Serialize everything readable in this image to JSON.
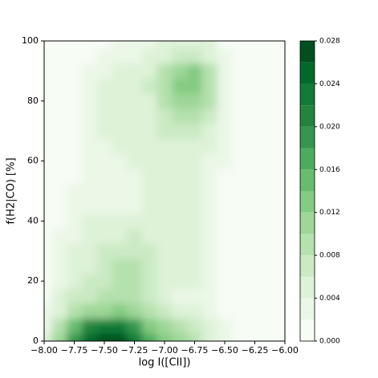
{
  "chart_data": {
    "type": "contour",
    "xlabel": "log I([CII])",
    "ylabel": "f(H2|CO) [%]",
    "xlim": [
      -8,
      -6
    ],
    "ylim": [
      0,
      100
    ],
    "xticks": [
      {
        "value": -8,
        "label": "−8.00"
      },
      {
        "value": -7.75,
        "label": "−7.75"
      },
      {
        "value": -7.5,
        "label": "−7.50"
      },
      {
        "value": -7.25,
        "label": "−7.25"
      },
      {
        "value": -7,
        "label": "−7.00"
      },
      {
        "value": -6.75,
        "label": "−6.75"
      },
      {
        "value": -6.5,
        "label": "−6.50"
      },
      {
        "value": -6.25,
        "label": "−6.25"
      },
      {
        "value": -6,
        "label": "−6.00"
      }
    ],
    "yticks": [
      0,
      20,
      40,
      60,
      80,
      100
    ],
    "levels": [
      0,
      0.002,
      0.004,
      0.006,
      0.008,
      0.01,
      0.012,
      0.014,
      0.016,
      0.018,
      0.02,
      0.022,
      0.024,
      0.026,
      0.028
    ],
    "colors": [
      "#f7fcf5",
      "#ebf7e7",
      "#def2d8",
      "#cbeac4",
      "#b5e1ae",
      "#9ed798",
      "#84cb83",
      "#67bc6e",
      "#4bac5f",
      "#34964f",
      "#23843e",
      "#117b38",
      "#006a2d",
      "#00501f"
    ],
    "colorbar_ticks": [
      {
        "value": 0,
        "label": "0.000"
      },
      {
        "value": 0.004,
        "label": "0.004"
      },
      {
        "value": 0.008,
        "label": "0.008"
      },
      {
        "value": 0.012,
        "label": "0.012"
      },
      {
        "value": 0.016,
        "label": "0.016"
      },
      {
        "value": 0.02,
        "label": "0.020"
      },
      {
        "value": 0.024,
        "label": "0.024"
      },
      {
        "value": 0.028,
        "label": "0.028"
      }
    ],
    "x": [
      -8,
      -7.875,
      -7.75,
      -7.625,
      -7.5,
      -7.375,
      -7.25,
      -7.125,
      -7,
      -6.875,
      -6.75,
      -6.625,
      -6.5,
      -6.375,
      -6.25,
      -6.125,
      -6
    ],
    "y": [
      0,
      5,
      10,
      15,
      20,
      25,
      30,
      35,
      40,
      45,
      50,
      55,
      60,
      65,
      70,
      75,
      80,
      85,
      90,
      95,
      100
    ],
    "z": [
      [
        0.004,
        0.01,
        0.018,
        0.025,
        0.028,
        0.027,
        0.022,
        0.016,
        0.012,
        0.01,
        0.008,
        0.005,
        0.002,
        0.001,
        0.001,
        0.001,
        0.001
      ],
      [
        0.003,
        0.008,
        0.014,
        0.02,
        0.023,
        0.022,
        0.018,
        0.013,
        0.01,
        0.008,
        0.006,
        0.004,
        0.002,
        0.001,
        0.001,
        0.001,
        0.001
      ],
      [
        0.002,
        0.005,
        0.008,
        0.01,
        0.011,
        0.012,
        0.011,
        0.008,
        0.006,
        0.005,
        0.004,
        0.003,
        0.0015,
        0.001,
        0.001,
        0.001,
        0.001
      ],
      [
        0.0015,
        0.004,
        0.006,
        0.007,
        0.008,
        0.009,
        0.009,
        0.007,
        0.005,
        0.003,
        0.0035,
        0.003,
        0.0015,
        0.001,
        0.001,
        0.001,
        0.001
      ],
      [
        0.001,
        0.003,
        0.005,
        0.006,
        0.007,
        0.008,
        0.008,
        0.006,
        0.004,
        0.005,
        0.004,
        0.003,
        0.0015,
        0.001,
        0.001,
        0.001,
        0.001
      ],
      [
        0.001,
        0.0025,
        0.004,
        0.005,
        0.006,
        0.008,
        0.008,
        0.006,
        0.005,
        0.005,
        0.004,
        0.003,
        0.0015,
        0.001,
        0.001,
        0.001,
        0.001
      ],
      [
        0.001,
        0.002,
        0.004,
        0.005,
        0.006,
        0.007,
        0.007,
        0.006,
        0.005,
        0.004,
        0.004,
        0.003,
        0.0015,
        0.001,
        0.001,
        0.001,
        0.001
      ],
      [
        0.001,
        0.002,
        0.003,
        0.0045,
        0.005,
        0.005,
        0.006,
        0.005,
        0.004,
        0.004,
        0.004,
        0.003,
        0.0015,
        0.001,
        0.001,
        0.001,
        0.001
      ],
      [
        0.001,
        0.0015,
        0.003,
        0.004,
        0.004,
        0.004,
        0.0045,
        0.0045,
        0.004,
        0.004,
        0.004,
        0.003,
        0.0015,
        0.001,
        0.001,
        0.001,
        0.001
      ],
      [
        0.001,
        0.0015,
        0.0025,
        0.003,
        0.0035,
        0.0035,
        0.0035,
        0.004,
        0.004,
        0.004,
        0.004,
        0.003,
        0.0015,
        0.001,
        0.001,
        0.001,
        0.001
      ],
      [
        0.001,
        0.0015,
        0.002,
        0.0025,
        0.003,
        0.003,
        0.0035,
        0.004,
        0.004,
        0.004,
        0.004,
        0.003,
        0.0015,
        0.001,
        0.001,
        0.001,
        0.001
      ],
      [
        0.001,
        0.001,
        0.0015,
        0.002,
        0.003,
        0.003,
        0.0035,
        0.004,
        0.004,
        0.004,
        0.004,
        0.003,
        0.0015,
        0.001,
        0.001,
        0.001,
        0.001
      ],
      [
        0.001,
        0.001,
        0.0015,
        0.002,
        0.003,
        0.0035,
        0.004,
        0.004,
        0.0045,
        0.0045,
        0.0045,
        0.0035,
        0.002,
        0.001,
        0.001,
        0.001,
        0.001
      ],
      [
        0.001,
        0.001,
        0.0015,
        0.002,
        0.0035,
        0.004,
        0.004,
        0.0045,
        0.005,
        0.005,
        0.005,
        0.004,
        0.002,
        0.001,
        0.001,
        0.001,
        0.001
      ],
      [
        0.001,
        0.001,
        0.0015,
        0.0025,
        0.004,
        0.0045,
        0.0045,
        0.0045,
        0.006,
        0.007,
        0.007,
        0.005,
        0.002,
        0.001,
        0.001,
        0.001,
        0.001
      ],
      [
        0.001,
        0.001,
        0.0015,
        0.003,
        0.0045,
        0.005,
        0.004,
        0.005,
        0.007,
        0.009,
        0.009,
        0.007,
        0.0025,
        0.001,
        0.001,
        0.001,
        0.001
      ],
      [
        0.001,
        0.001,
        0.0015,
        0.003,
        0.0045,
        0.0045,
        0.0045,
        0.0055,
        0.008,
        0.011,
        0.011,
        0.008,
        0.003,
        0.001,
        0.001,
        0.001,
        0.001
      ],
      [
        0.001,
        0.001,
        0.0015,
        0.003,
        0.004,
        0.0045,
        0.005,
        0.006,
        0.009,
        0.012,
        0.013,
        0.009,
        0.003,
        0.001,
        0.001,
        0.001,
        0.001
      ],
      [
        0.001,
        0.001,
        0.0015,
        0.0025,
        0.0035,
        0.004,
        0.0045,
        0.0055,
        0.008,
        0.011,
        0.012,
        0.008,
        0.003,
        0.001,
        0.001,
        0.001,
        0.001
      ],
      [
        0.001,
        0.001,
        0.001,
        0.0015,
        0.002,
        0.0025,
        0.003,
        0.004,
        0.0055,
        0.007,
        0.007,
        0.005,
        0.002,
        0.001,
        0.001,
        0.001,
        0.001
      ],
      [
        0.001,
        0.001,
        0.001,
        0.001,
        0.0015,
        0.002,
        0.0025,
        0.003,
        0.004,
        0.005,
        0.005,
        0.004,
        0.0015,
        0.001,
        0.001,
        0.001,
        0.001
      ]
    ]
  }
}
